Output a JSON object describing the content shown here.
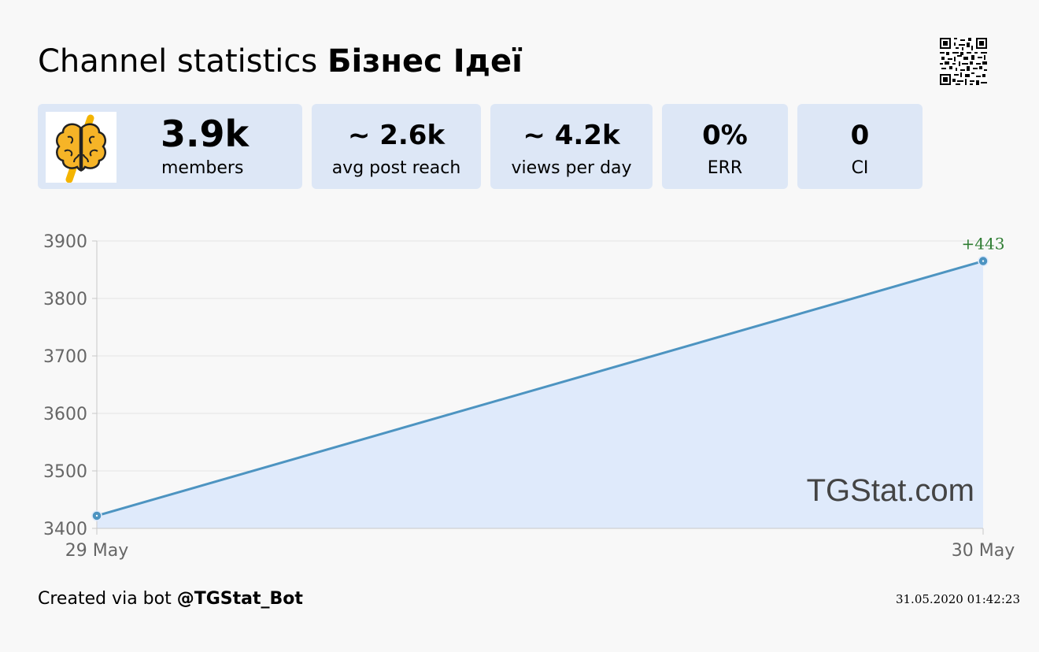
{
  "header": {
    "title_prefix": "Channel statistics ",
    "channel_name": "Бізнес Ідеї"
  },
  "stats": {
    "members_value": "3.9k",
    "members_label": "members",
    "reach_value": "~ 2.6k",
    "reach_label": "avg post reach",
    "views_value": "~ 4.2k",
    "views_label": "views per day",
    "err_value": "0%",
    "err_label": "ERR",
    "ci_value": "0",
    "ci_label": "CI"
  },
  "chart_data": {
    "type": "area",
    "x": [
      "29 May",
      "30 May"
    ],
    "series": [
      {
        "values": [
          3422,
          3865
        ]
      }
    ],
    "ylim": [
      3400,
      3900
    ],
    "yticks": [
      3400,
      3500,
      3600,
      3700,
      3800,
      3900
    ],
    "annotation": "+443",
    "watermark": "TGStat.com",
    "grid": true,
    "line_color": "#4d94c1",
    "fill_color": "#dfeafb",
    "annotation_color": "#2e7d32"
  },
  "footer": {
    "created_prefix": "Created via bot ",
    "bot_handle": "@TGStat_Bot",
    "timestamp": "31.05.2020 01:42:23"
  }
}
